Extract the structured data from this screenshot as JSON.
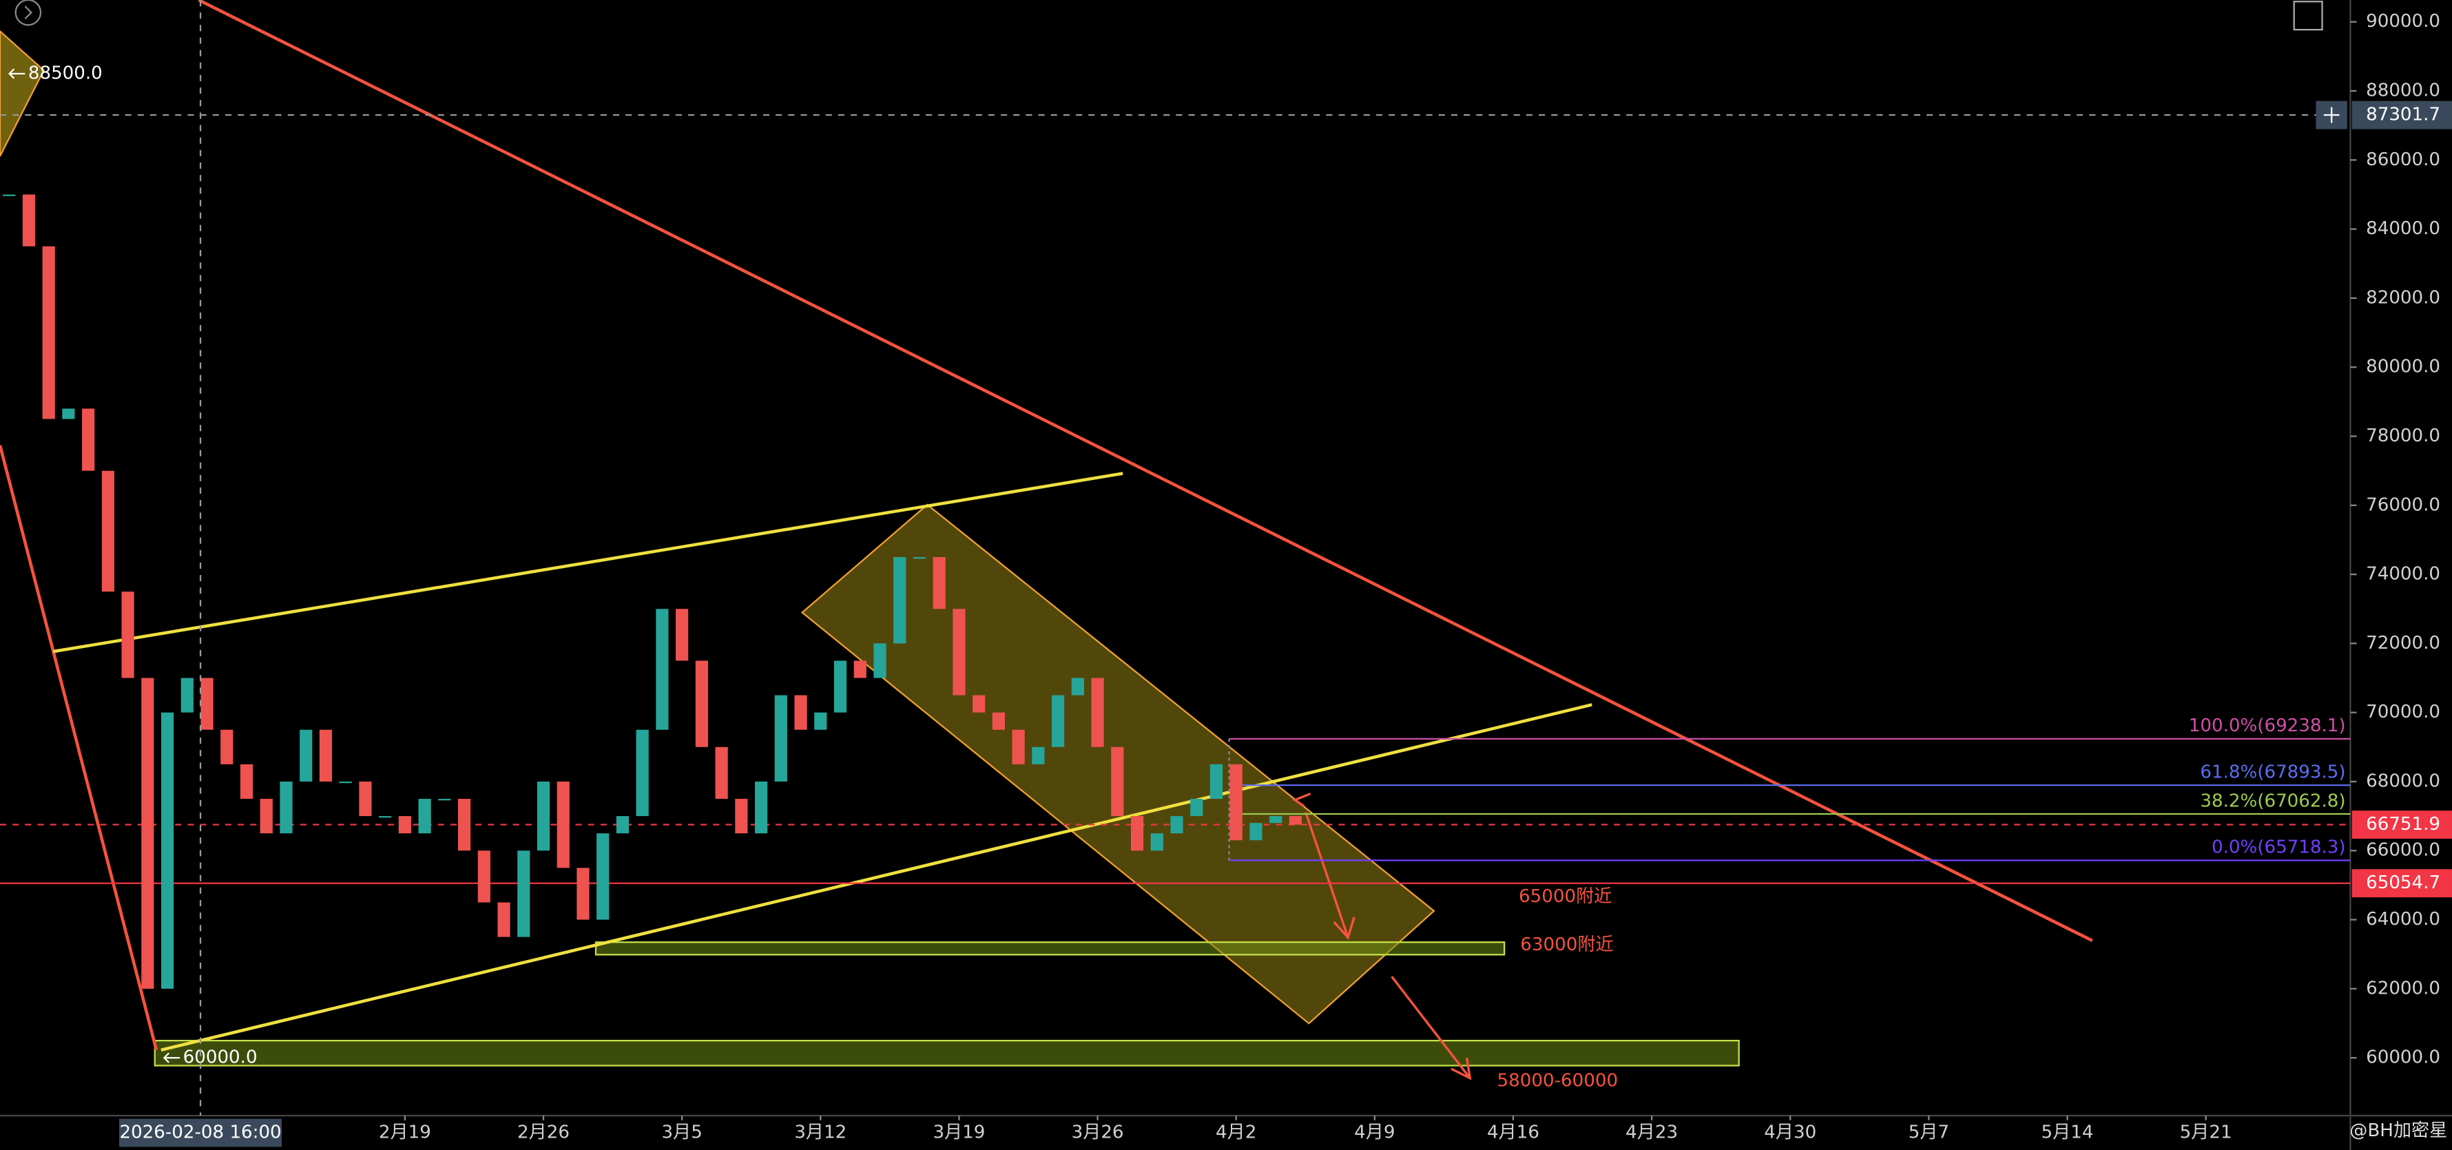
{
  "chart_data": {
    "type": "candlestick",
    "x": [
      -1,
      0,
      1,
      2,
      3,
      4,
      5,
      6,
      7,
      8,
      9,
      10,
      11,
      12,
      13,
      14,
      15,
      16,
      17,
      18,
      19,
      20,
      21,
      22,
      23,
      24,
      25,
      26,
      27,
      28,
      29,
      30,
      31,
      32,
      33,
      34,
      35,
      36,
      37,
      38,
      39,
      40,
      41,
      42,
      43,
      44,
      45,
      46,
      47,
      48,
      49,
      50,
      51,
      52,
      53,
      54,
      55,
      56,
      57,
      58,
      59,
      60,
      61,
      62,
      63,
      64
    ],
    "values": [
      85000,
      83500,
      78500,
      78800,
      77000,
      73500,
      71000,
      62000,
      70000,
      71000,
      69500,
      68500,
      67500,
      66500,
      68000,
      69500,
      68000,
      68000,
      67000,
      67000,
      66500,
      67500,
      67500,
      66000,
      64500,
      63500,
      66000,
      68000,
      65500,
      64000,
      66500,
      67000,
      69500,
      73000,
      71500,
      69000,
      67500,
      66500,
      68000,
      70500,
      69500,
      70000,
      71500,
      71000,
      72000,
      74500,
      74500,
      73000,
      70500,
      70000,
      69500,
      68500,
      69000,
      70500,
      71000,
      69000,
      67000,
      66000,
      66500,
      67000,
      67500,
      68500,
      66300,
      66800,
      67000,
      66751.9
    ],
    "up_color": "#26a69a",
    "down_color": "#ef5350",
    "xlim": [
      -1.46,
      117.3
    ],
    "xticks": [
      {
        "value": 19,
        "label": "2月19"
      },
      {
        "value": 26,
        "label": "2月26"
      },
      {
        "value": 33,
        "label": "3月5"
      },
      {
        "value": 40,
        "label": "3月12"
      },
      {
        "value": 47,
        "label": "3月19"
      },
      {
        "value": 54,
        "label": "3月26"
      },
      {
        "value": 61,
        "label": "4月2"
      },
      {
        "value": 68,
        "label": "4月9"
      },
      {
        "value": 75,
        "label": "4月16"
      },
      {
        "value": 82,
        "label": "4月23"
      },
      {
        "value": 89,
        "label": "4月30"
      },
      {
        "value": 96,
        "label": "5月7"
      },
      {
        "value": 103,
        "label": "5月14"
      },
      {
        "value": 110,
        "label": "5月21"
      }
    ],
    "ylim": [
      58326,
      90633
    ],
    "yticks": [
      {
        "value": 60000,
        "label": "60000.0"
      },
      {
        "value": 62000,
        "label": "62000.0"
      },
      {
        "value": 64000,
        "label": "64000.0"
      },
      {
        "value": 66000,
        "label": "66000.0"
      },
      {
        "value": 68000,
        "label": "68000.0"
      },
      {
        "value": 70000,
        "label": "70000.0"
      },
      {
        "value": 72000,
        "label": "72000.0"
      },
      {
        "value": 74000,
        "label": "74000.0"
      },
      {
        "value": 76000,
        "label": "76000.0"
      },
      {
        "value": 78000,
        "label": "78000.0"
      },
      {
        "value": 80000,
        "label": "80000.0"
      },
      {
        "value": 82000,
        "label": "82000.0"
      },
      {
        "value": 84000,
        "label": "84000.0"
      },
      {
        "value": 86000,
        "label": "86000.0"
      },
      {
        "value": 88000,
        "label": "88000.0"
      },
      {
        "value": 90000,
        "label": "90000.0"
      }
    ],
    "crosshair": {
      "x": 8.67,
      "x_label": "2026-02-08 16:00",
      "y": 87301.7
    },
    "price_lines": [
      {
        "value": 66751.9,
        "color": "#f23645",
        "style": "dashed"
      },
      {
        "value": 65054.7,
        "color": "#f23645",
        "style": "solid"
      }
    ],
    "fib_levels": [
      {
        "value": 69238.1,
        "label": "100.0%(69238.1)",
        "color": "#d04fa8"
      },
      {
        "value": 67893.5,
        "label": "61.8%(67893.5)",
        "color": "#5b6ef0"
      },
      {
        "value": 67062.8,
        "label": "38.2%(67062.8)",
        "color": "#9ccc50"
      },
      {
        "value": 65718.3,
        "label": "0.0%(65718.3)",
        "color": "#7040ff"
      }
    ],
    "high_marker": {
      "value": 88500,
      "label": "88500.0"
    },
    "low_marker": {
      "value": 60000,
      "label": "60000.0"
    },
    "zone_labels": [
      "65000附近",
      "63000附近",
      "58000-60000"
    ],
    "watermark": "@BH加密星"
  }
}
